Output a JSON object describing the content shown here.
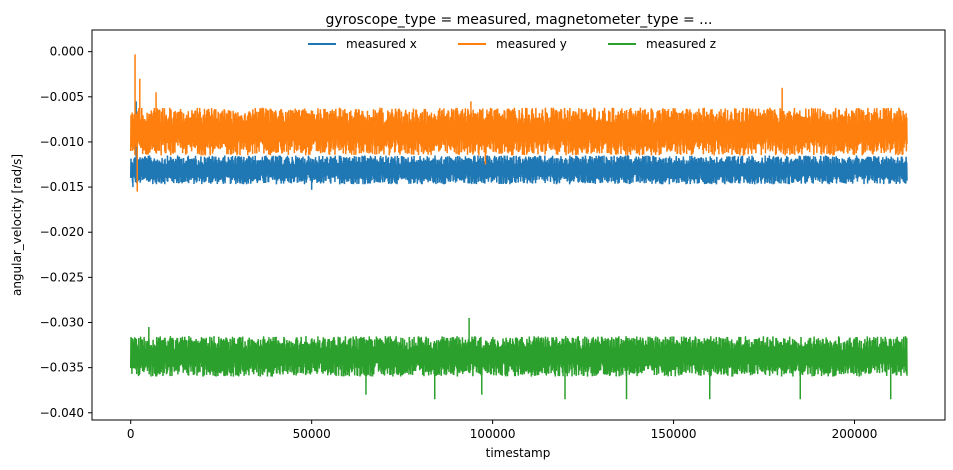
{
  "chart_data": {
    "type": "line",
    "title": "gyroscope_type = measured, magnetometer_type = ...",
    "xlabel": "timestamp",
    "ylabel": "angular_velocity [rad/s]",
    "xlim": [
      -10700,
      225000
    ],
    "ylim": [
      -0.0408,
      0.0024
    ],
    "xticks": [
      0,
      50000,
      100000,
      150000,
      200000
    ],
    "xtick_labels": [
      "0",
      "50000",
      "100000",
      "150000",
      "200000"
    ],
    "yticks": [
      0.0,
      -0.005,
      -0.01,
      -0.015,
      -0.02,
      -0.025,
      -0.03,
      -0.035,
      -0.04
    ],
    "ytick_labels": [
      "0.000",
      "−0.005",
      "−0.010",
      "−0.015",
      "−0.020",
      "−0.025",
      "−0.030",
      "−0.035",
      "−0.040"
    ],
    "grid": false,
    "legend_position": "top-center",
    "series": [
      {
        "name": "measured x",
        "color": "#1f77b4",
        "x_range": [
          0,
          214500
        ],
        "band": [
          -0.0147,
          -0.0115
        ],
        "extremes": [
          {
            "x": 600,
            "y": -0.015
          },
          {
            "x": 1500,
            "y": -0.0055
          },
          {
            "x": 50000,
            "y": -0.0153
          },
          {
            "x": 95000,
            "y": -0.0115
          }
        ]
      },
      {
        "name": "measured y",
        "color": "#ff7f0e",
        "x_range": [
          0,
          214500
        ],
        "band": [
          -0.0115,
          -0.0062
        ],
        "extremes": [
          {
            "x": 1200,
            "y": -0.0003
          },
          {
            "x": 1800,
            "y": -0.0155
          },
          {
            "x": 2500,
            "y": -0.003
          },
          {
            "x": 7000,
            "y": -0.0045
          },
          {
            "x": 94000,
            "y": -0.0055
          },
          {
            "x": 98000,
            "y": -0.0125
          },
          {
            "x": 180000,
            "y": -0.004
          }
        ]
      },
      {
        "name": "measured z",
        "color": "#2ca02c",
        "x_range": [
          0,
          214500
        ],
        "band": [
          -0.036,
          -0.0315
        ],
        "extremes": [
          {
            "x": 5000,
            "y": -0.0305
          },
          {
            "x": 65000,
            "y": -0.038
          },
          {
            "x": 84000,
            "y": -0.0385
          },
          {
            "x": 93500,
            "y": -0.0295
          },
          {
            "x": 97000,
            "y": -0.038
          },
          {
            "x": 120000,
            "y": -0.0385
          },
          {
            "x": 137000,
            "y": -0.0385
          },
          {
            "x": 160000,
            "y": -0.0385
          },
          {
            "x": 185000,
            "y": -0.0385
          },
          {
            "x": 210000,
            "y": -0.0385
          }
        ]
      }
    ]
  }
}
